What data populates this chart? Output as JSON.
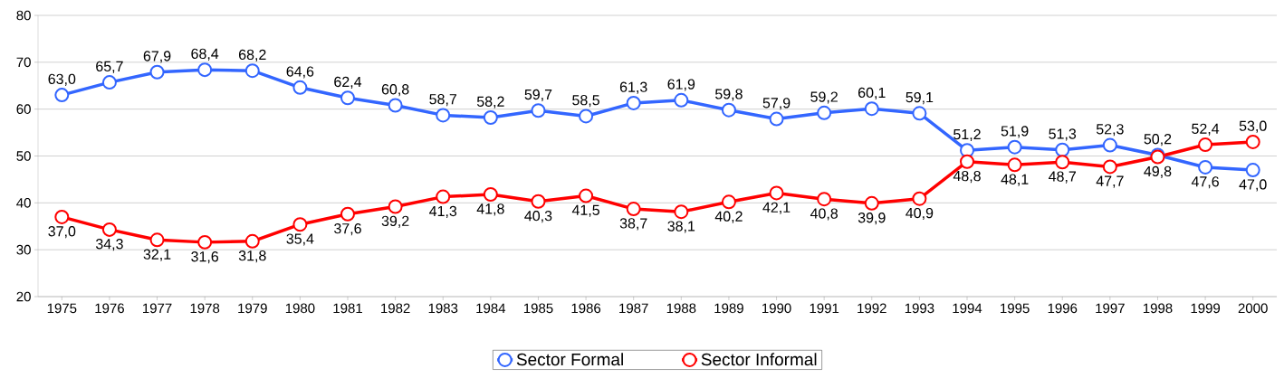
{
  "chart_data": {
    "type": "line",
    "categories": [
      "1975",
      "1976",
      "1977",
      "1978",
      "1979",
      "1980",
      "1981",
      "1982",
      "1983",
      "1984",
      "1985",
      "1986",
      "1987",
      "1988",
      "1989",
      "1990",
      "1991",
      "1992",
      "1993",
      "1994",
      "1995",
      "1996",
      "1997",
      "1998",
      "1999",
      "2000"
    ],
    "series": [
      {
        "name": "Sector Formal",
        "color": "#3366ff",
        "values": [
          63.0,
          65.7,
          67.9,
          68.4,
          68.2,
          64.6,
          62.4,
          60.8,
          58.7,
          58.2,
          59.7,
          58.5,
          61.3,
          61.9,
          59.8,
          57.9,
          59.2,
          60.1,
          59.1,
          51.2,
          51.9,
          51.3,
          52.3,
          50.2,
          47.6,
          47.0
        ],
        "value_labels": [
          "63,0",
          "65,7",
          "67,9",
          "68,4",
          "68,2",
          "64,6",
          "62,4",
          "60,8",
          "58,7",
          "58,2",
          "59,7",
          "58,5",
          "61,3",
          "61,9",
          "59,8",
          "57,9",
          "59,2",
          "60,1",
          "59,1",
          "51,2",
          "51,9",
          "51,3",
          "52,3",
          "50,2",
          "47,6",
          "47,0"
        ]
      },
      {
        "name": "Sector Informal",
        "color": "#ff0000",
        "values": [
          37.0,
          34.3,
          32.1,
          31.6,
          31.8,
          35.4,
          37.6,
          39.2,
          41.3,
          41.8,
          40.3,
          41.5,
          38.7,
          38.1,
          40.2,
          42.1,
          40.8,
          39.9,
          40.9,
          48.8,
          48.1,
          48.7,
          47.7,
          49.8,
          52.4,
          53.0
        ],
        "value_labels": [
          "37,0",
          "34,3",
          "32,1",
          "31,6",
          "31,8",
          "35,4",
          "37,6",
          "39,2",
          "41,3",
          "41,8",
          "40,3",
          "41,5",
          "38,7",
          "38,1",
          "40,2",
          "42,1",
          "40,8",
          "39,9",
          "40,9",
          "48,8",
          "48,1",
          "48,7",
          "47,7",
          "49,8",
          "52,4",
          "53,0"
        ]
      }
    ],
    "ylim": [
      20,
      80
    ],
    "yticks": [
      20,
      30,
      40,
      50,
      60,
      70,
      80
    ],
    "grid": "y",
    "legend": "bottom",
    "marker": "circle",
    "line_style": "solid"
  }
}
